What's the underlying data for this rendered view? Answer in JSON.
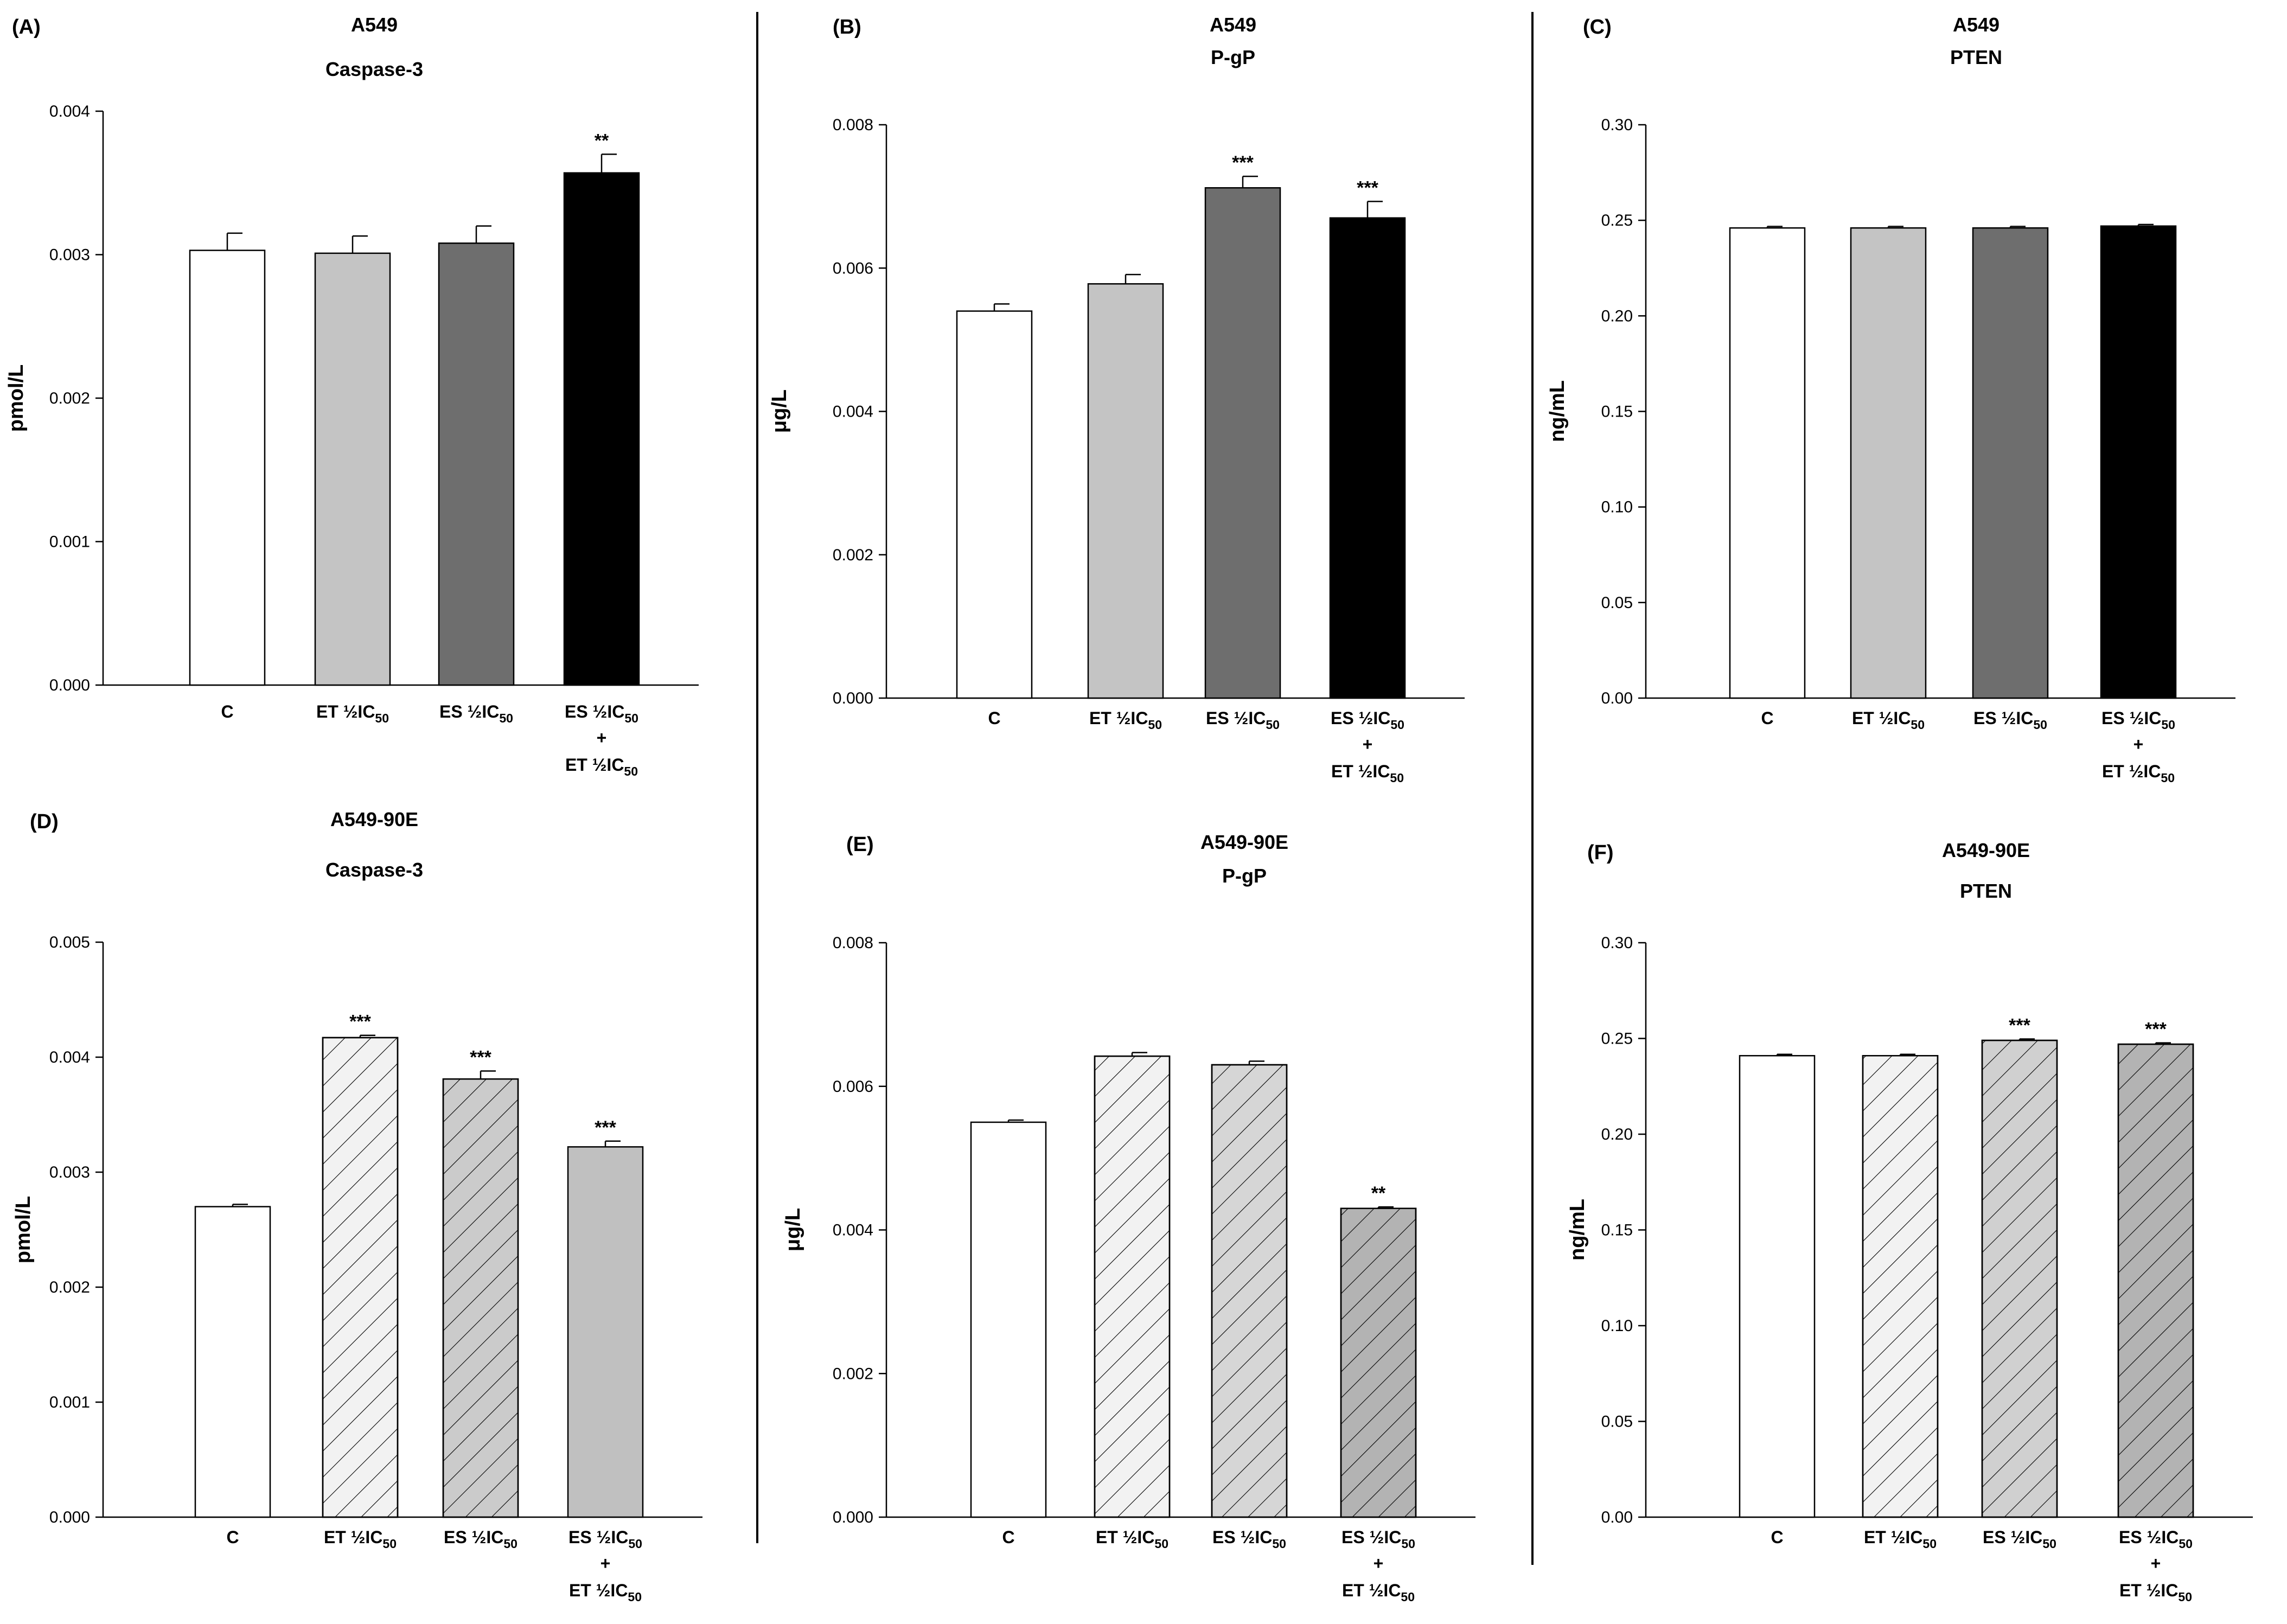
{
  "figure": {
    "categories": [
      {
        "main": "ET",
        "frac_num": "1",
        "frac_den": "2",
        "sym": "IC",
        "sub": "50",
        "full": "ET ½IC50"
      }
    ]
  },
  "chart_data": [
    {
      "panel": "(A)",
      "type": "bar",
      "title": "A549",
      "subtitle": "Caspase-3",
      "ylabel": "pmol/L",
      "xlabel": "",
      "ylim": [
        0,
        0.004
      ],
      "yticks": [
        "0.000",
        "0.001",
        "0.002",
        "0.003",
        "0.004"
      ],
      "categories": [
        "C",
        "ET ½IC50",
        "ES ½IC50",
        "ES ½IC50 + ET ½IC50"
      ],
      "values": [
        0.00303,
        0.00301,
        0.00308,
        0.00357
      ],
      "errors": [
        0.00012,
        0.00012,
        0.00012,
        0.00013
      ],
      "significance": [
        "",
        "",
        "",
        "**"
      ],
      "fills": [
        "#ffffff",
        "#c4c4c4",
        "#6e6e6e",
        "#000000"
      ],
      "patterns": [
        "none",
        "none",
        "none",
        "none"
      ]
    },
    {
      "panel": "(B)",
      "type": "bar",
      "title": "A549",
      "subtitle": "P-gP",
      "ylabel": "μg/L",
      "xlabel": "",
      "ylim": [
        0,
        0.008
      ],
      "yticks": [
        "0.000",
        "0.002",
        "0.004",
        "0.006",
        "0.008"
      ],
      "categories": [
        "C",
        "ET ½IC50",
        "ES ½IC50",
        "ES ½IC50 + ET ½IC50"
      ],
      "values": [
        0.0054,
        0.00578,
        0.00712,
        0.0067
      ],
      "errors": [
        0.0001,
        0.00013,
        0.00016,
        0.00023
      ],
      "significance": [
        "",
        "",
        "***",
        "***"
      ],
      "fills": [
        "#ffffff",
        "#c4c4c4",
        "#6e6e6e",
        "#000000"
      ],
      "patterns": [
        "none",
        "none",
        "none",
        "none"
      ]
    },
    {
      "panel": "(C)",
      "type": "bar",
      "title": "A549",
      "subtitle": "PTEN",
      "ylabel": "ng/mL",
      "xlabel": "",
      "ylim": [
        0,
        0.3
      ],
      "yticks": [
        "0.00",
        "0.05",
        "0.10",
        "0.15",
        "0.20",
        "0.25",
        "0.30"
      ],
      "categories": [
        "C",
        "ET ½IC50",
        "ES ½IC50",
        "ES ½IC50 + ET ½IC50"
      ],
      "values": [
        0.246,
        0.246,
        0.246,
        0.247
      ],
      "errors": [
        0.0008,
        0.0008,
        0.0008,
        0.0008
      ],
      "significance": [
        "",
        "",
        "",
        ""
      ],
      "fills": [
        "#ffffff",
        "#c4c4c4",
        "#6e6e6e",
        "#000000"
      ],
      "patterns": [
        "none",
        "none",
        "none",
        "none"
      ]
    },
    {
      "panel": "(D)",
      "type": "bar",
      "title": "A549-90E",
      "subtitle": "Caspase-3",
      "ylabel": "pmol/L",
      "xlabel": "",
      "ylim": [
        0,
        0.005
      ],
      "yticks": [
        "0.000",
        "0.001",
        "0.002",
        "0.003",
        "0.004",
        "0.005"
      ],
      "categories": [
        "C",
        "ET ½IC50",
        "ES ½IC50",
        "ES ½IC50 + ET ½IC50"
      ],
      "values": [
        0.0027,
        0.00417,
        0.00381,
        0.00322
      ],
      "errors": [
        2e-05,
        2e-05,
        7e-05,
        5e-05
      ],
      "significance": [
        "",
        "***",
        "***",
        "***"
      ],
      "fills": [
        "#ffffff",
        "#f2f2f2",
        "#cbcbcb",
        "#c0c0c0"
      ],
      "patterns": [
        "none",
        "hatch",
        "hatch",
        "none"
      ]
    },
    {
      "panel": "(E)",
      "type": "bar",
      "title": "A549-90E",
      "subtitle": "P-gP",
      "ylabel": "μg/L",
      "xlabel": "",
      "ylim": [
        0,
        0.008
      ],
      "yticks": [
        "0.000",
        "0.002",
        "0.004",
        "0.006",
        "0.008"
      ],
      "categories": [
        "C",
        "ET ½IC50",
        "ES ½IC50",
        "ES ½IC50 + ET ½IC50"
      ],
      "values": [
        0.0055,
        0.00642,
        0.0063,
        0.0043
      ],
      "errors": [
        3e-05,
        5e-05,
        5e-05,
        2e-05
      ],
      "significance": [
        "",
        "",
        "",
        "**"
      ],
      "fills": [
        "#ffffff",
        "#f2f2f2",
        "#d6d6d6",
        "#b3b3b3"
      ],
      "patterns": [
        "none",
        "hatch",
        "hatch",
        "hatch"
      ]
    },
    {
      "panel": "(F)",
      "type": "bar",
      "title": "A549-90E",
      "subtitle": "PTEN",
      "ylabel": "ng/mL",
      "xlabel": "",
      "ylim": [
        0,
        0.3
      ],
      "yticks": [
        "0.00",
        "0.05",
        "0.10",
        "0.15",
        "0.20",
        "0.25",
        "0.30"
      ],
      "categories": [
        "C",
        "ET ½IC50",
        "ES ½IC50",
        "ES ½IC50 + ET ½IC50"
      ],
      "values": [
        0.241,
        0.241,
        0.249,
        0.247
      ],
      "errors": [
        0.0007,
        0.0007,
        0.0007,
        0.0007
      ],
      "significance": [
        "",
        "",
        "***",
        "***"
      ],
      "fills": [
        "#ffffff",
        "#f2f2f2",
        "#d0d0d0",
        "#b3b3b3"
      ],
      "patterns": [
        "none",
        "hatch",
        "hatch",
        "hatch"
      ]
    }
  ]
}
